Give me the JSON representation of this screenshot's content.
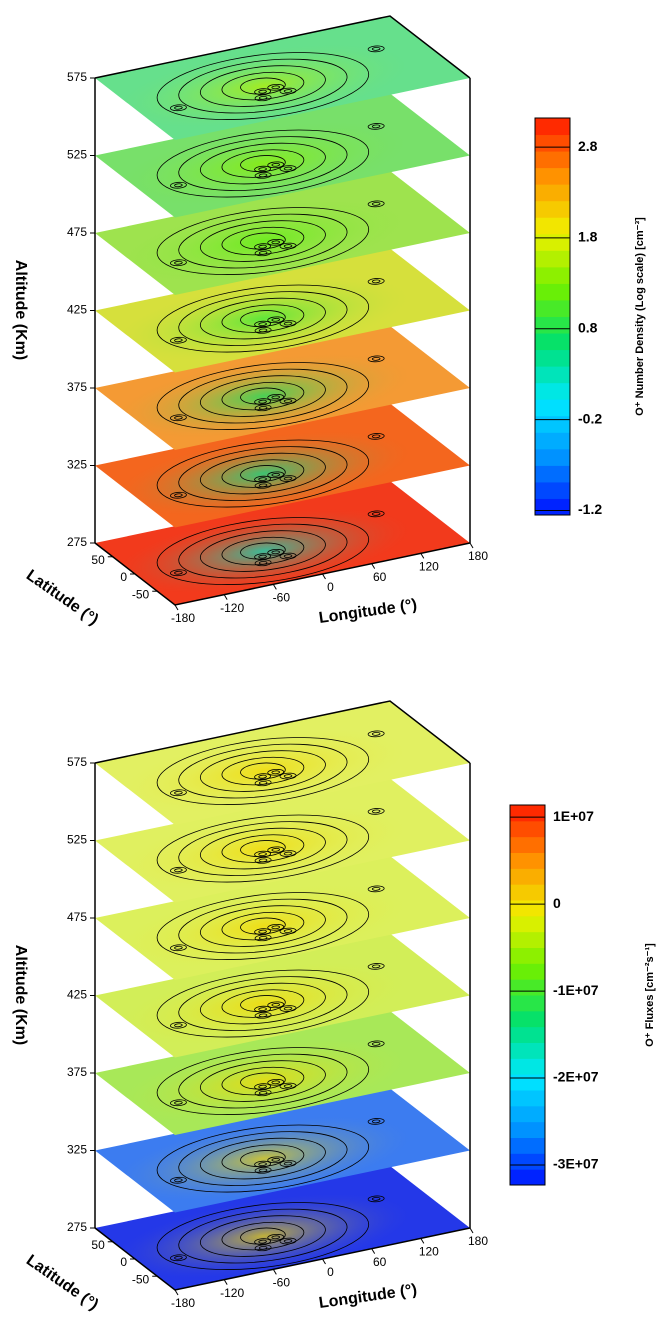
{
  "chart_data": [
    {
      "type": "stacked-slices",
      "zlabel": "Altitude (Km)",
      "xlabel": "Longitude (°)",
      "ylabel": "Latitude (°)",
      "zlim": [
        275,
        575
      ],
      "zticks": [
        275,
        325,
        375,
        425,
        475,
        525,
        575
      ],
      "xlim": [
        -180,
        180
      ],
      "xticks": [
        -180,
        -120,
        -60,
        0,
        60,
        120,
        180
      ],
      "ylim": [
        -90,
        90
      ],
      "yticks": [
        50,
        0,
        -50
      ],
      "slice_colors": [
        "#f23a1c",
        "#f4661e",
        "#f49a34",
        "#d6e03c",
        "#9ee34e",
        "#78e06a",
        "#66e08c"
      ],
      "colorbar": {
        "label": "O⁺ Number Density (Log scale) [cm⁻³]",
        "lim": [
          -1.25,
          3.12
        ],
        "ticks": [
          -1.2,
          -0.2,
          0.8,
          1.8,
          2.8
        ],
        "colors": [
          "#0010ff",
          "#0090ff",
          "#00e8ff",
          "#00e070",
          "#70f000",
          "#f0f000",
          "#ff9000",
          "#ff1800"
        ]
      }
    },
    {
      "type": "stacked-slices",
      "zlabel": "Altitude (Km)",
      "xlabel": "Longitude (°)",
      "ylabel": "Latitude (°)",
      "zlim": [
        275,
        575
      ],
      "zticks": [
        275,
        325,
        375,
        425,
        475,
        525,
        575
      ],
      "xlim": [
        -180,
        180
      ],
      "xticks": [
        -180,
        -120,
        -60,
        0,
        60,
        120,
        180
      ],
      "ylim": [
        -90,
        90
      ],
      "yticks": [
        50,
        0,
        -50
      ],
      "slice_colors": [
        "#2438e8",
        "#3c7cf0",
        "#a8e858",
        "#d2ee58",
        "#dcf05c",
        "#e0f060",
        "#e2f062"
      ],
      "colorbar": {
        "label": "O⁺ Fluxes [cm⁻²s⁻¹]",
        "lim": [
          -32300000,
          11400000
        ],
        "ticks": [
          {
            "value": 10000000,
            "label": "1E+07"
          },
          0,
          {
            "value": -10000000,
            "label": "-1E+07"
          },
          {
            "value": -20000000,
            "label": "-2E+07"
          },
          {
            "value": -30000000,
            "label": "-3E+07"
          }
        ],
        "colors": [
          "#0010ff",
          "#0090ff",
          "#00e8ff",
          "#00e070",
          "#70f000",
          "#f0f000",
          "#ff9000",
          "#ff1800"
        ]
      }
    }
  ]
}
